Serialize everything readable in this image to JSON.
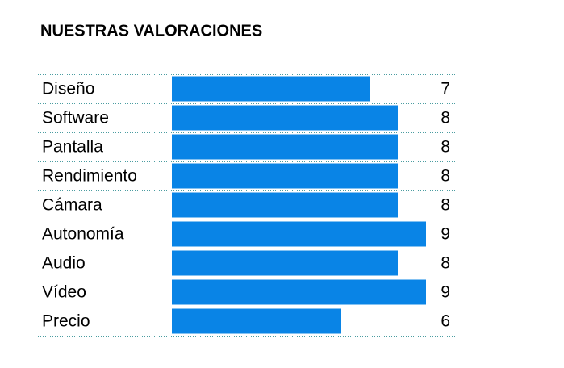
{
  "chart_data": {
    "type": "bar",
    "title": "NUESTRAS VALORACIONES",
    "categories": [
      "Diseño",
      "Software",
      "Pantalla",
      "Rendimiento",
      "Cámara",
      "Autonomía",
      "Audio",
      "Vídeo",
      "Precio"
    ],
    "values": [
      7,
      8,
      8,
      8,
      8,
      9,
      8,
      9,
      6
    ],
    "color": "#0984e6"
  }
}
